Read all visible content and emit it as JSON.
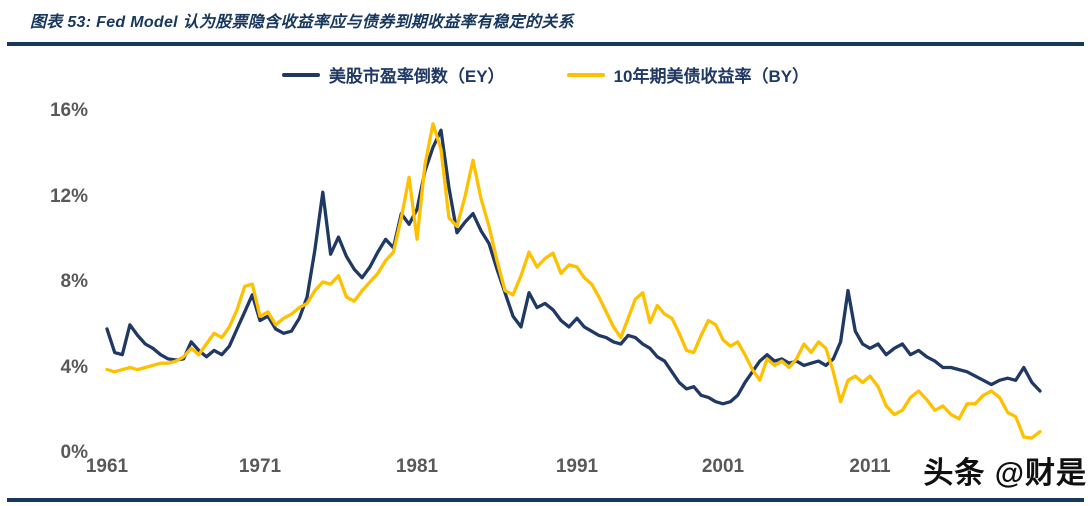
{
  "header": {
    "title": "图表 53:  Fed Model 认为股票隐含收益率应与债券到期收益率有稳定的关系"
  },
  "watermark": {
    "text": "头条 @财是"
  },
  "colors": {
    "navy": "#1f3864",
    "gold": "#ffc000",
    "rule": "#17375d",
    "axis_label": "#595959"
  },
  "chart_data": {
    "type": "line",
    "title": "",
    "xlabel": "",
    "ylabel": "",
    "ylim": [
      0,
      16
    ],
    "grid": false,
    "legend_position": "top-center",
    "y_ticks": [
      "16%",
      "12%",
      "8%",
      "4%",
      "0%"
    ],
    "y_tick_values": [
      16,
      12,
      8,
      4,
      0
    ],
    "x_ticks": [
      "1961",
      "1971",
      "1981",
      "1991",
      "2001",
      "2011"
    ],
    "x_tick_values": [
      1961,
      1971,
      1981,
      1991,
      2001,
      2011
    ],
    "x_start": 1961,
    "x_step": 0.5,
    "x_end": 2021.5,
    "series": [
      {
        "name": "美股市盈率倒数（EY）",
        "color": "#1f3864",
        "values": [
          5.8,
          4.7,
          4.6,
          6.0,
          5.5,
          5.1,
          4.9,
          4.6,
          4.4,
          4.35,
          4.4,
          5.2,
          4.8,
          4.5,
          4.8,
          4.6,
          5.0,
          5.8,
          6.6,
          7.4,
          6.2,
          6.4,
          5.8,
          5.6,
          5.7,
          6.3,
          7.3,
          9.5,
          12.2,
          9.3,
          10.1,
          9.2,
          8.6,
          8.2,
          8.7,
          9.4,
          10.0,
          9.6,
          11.2,
          10.7,
          11.4,
          13.2,
          14.3,
          15.1,
          12.4,
          10.3,
          10.8,
          11.2,
          10.4,
          9.8,
          8.6,
          7.5,
          6.4,
          5.9,
          7.5,
          6.8,
          7.0,
          6.7,
          6.2,
          5.9,
          6.3,
          5.9,
          5.7,
          5.5,
          5.4,
          5.2,
          5.1,
          5.5,
          5.4,
          5.1,
          4.9,
          4.5,
          4.3,
          3.8,
          3.3,
          3.0,
          3.1,
          2.7,
          2.6,
          2.4,
          2.3,
          2.4,
          2.7,
          3.3,
          3.8,
          4.3,
          4.6,
          4.3,
          4.4,
          4.2,
          4.3,
          4.1,
          4.2,
          4.3,
          4.1,
          4.4,
          5.2,
          7.6,
          5.7,
          5.1,
          4.9,
          5.1,
          4.6,
          4.9,
          5.1,
          4.6,
          4.8,
          4.5,
          4.3,
          4.0,
          4.0,
          3.9,
          3.8,
          3.6,
          3.4,
          3.2,
          3.4,
          3.5,
          3.4,
          4.0,
          3.3,
          2.9
        ]
      },
      {
        "name": "10年期美债收益率（BY）",
        "color": "#ffc000",
        "values": [
          3.9,
          3.8,
          3.9,
          4.0,
          3.9,
          4.0,
          4.1,
          4.2,
          4.2,
          4.3,
          4.5,
          4.9,
          4.6,
          5.1,
          5.6,
          5.4,
          5.9,
          6.7,
          7.8,
          7.9,
          6.4,
          6.6,
          6.0,
          6.3,
          6.5,
          6.8,
          7.0,
          7.6,
          8.0,
          7.9,
          8.3,
          7.3,
          7.1,
          7.6,
          8.0,
          8.4,
          9.0,
          9.4,
          11.0,
          12.9,
          10.0,
          13.5,
          15.4,
          14.2,
          11.0,
          10.6,
          12.0,
          13.7,
          11.9,
          10.6,
          9.0,
          7.6,
          7.4,
          8.3,
          9.4,
          8.7,
          9.1,
          9.35,
          8.4,
          8.8,
          8.7,
          8.2,
          7.9,
          7.3,
          6.6,
          5.9,
          5.4,
          6.3,
          7.2,
          7.5,
          6.1,
          6.9,
          6.5,
          6.3,
          5.6,
          4.8,
          4.7,
          5.5,
          6.2,
          6.0,
          5.3,
          5.0,
          5.2,
          4.6,
          3.9,
          3.4,
          4.4,
          4.1,
          4.3,
          4.0,
          4.4,
          5.1,
          4.7,
          5.2,
          4.9,
          3.8,
          2.4,
          3.4,
          3.6,
          3.3,
          3.6,
          3.1,
          2.2,
          1.8,
          2.0,
          2.6,
          2.9,
          2.5,
          2.0,
          2.2,
          1.8,
          1.6,
          2.3,
          2.3,
          2.7,
          2.9,
          2.6,
          1.9,
          1.7,
          0.75,
          0.7,
          1.0
        ]
      }
    ]
  }
}
